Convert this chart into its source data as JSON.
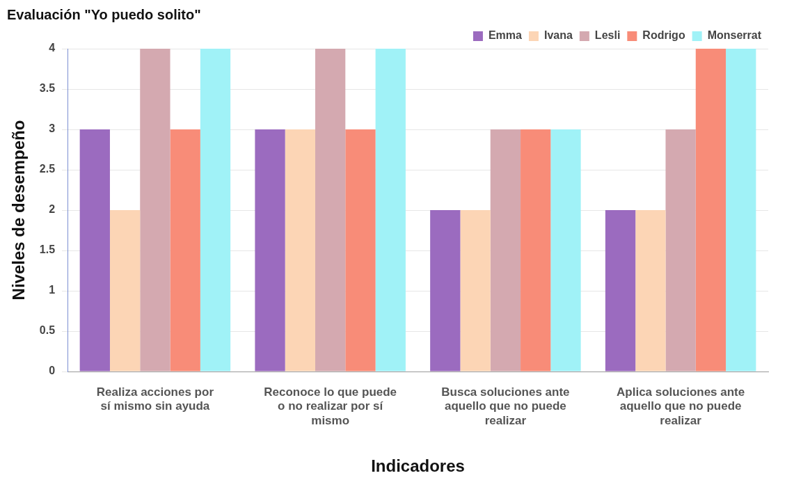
{
  "chart_data": {
    "type": "bar",
    "title": "Evaluación \"Yo puedo solito\"",
    "xlabel": "Indicadores",
    "ylabel": "Niveles de desempeño",
    "categories": [
      "Realiza acciones por sí mismo sin ayuda",
      "Reconoce lo que puede o no realizar por sí mismo",
      "Busca soluciones ante aquello que no puede realizar",
      "Aplica soluciones ante aquello que no puede realizar"
    ],
    "series": [
      {
        "name": "Emma",
        "color": "#9b6bbf",
        "values": [
          3,
          3,
          2,
          2
        ]
      },
      {
        "name": "Ivana",
        "color": "#fcd5b5",
        "values": [
          2,
          3,
          2,
          2
        ]
      },
      {
        "name": "Lesli",
        "color": "#d4a9b0",
        "values": [
          4,
          4,
          3,
          3
        ]
      },
      {
        "name": "Rodrigo",
        "color": "#f88c78",
        "values": [
          3,
          3,
          3,
          4
        ]
      },
      {
        "name": "Monserrat",
        "color": "#a0f2f7",
        "values": [
          4,
          4,
          3,
          4
        ]
      }
    ],
    "ylim": [
      0,
      4
    ],
    "yticks": [
      0,
      0.5,
      1,
      1.5,
      2,
      2.5,
      3,
      3.5,
      4
    ],
    "grid": "y",
    "legend": "top right"
  }
}
